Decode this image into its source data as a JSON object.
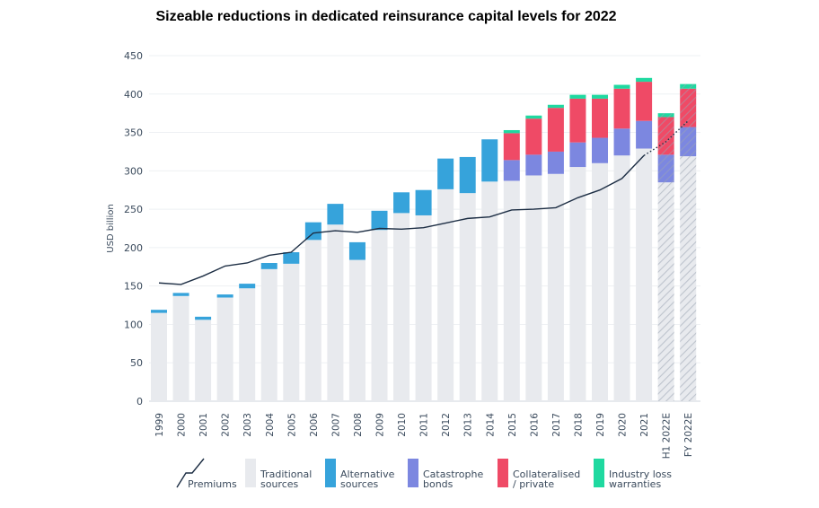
{
  "chart_data": {
    "type": "bar",
    "stacked": true,
    "title": "Sizeable reductions in dedicated reinsurance capital levels for 2022",
    "ylabel": "USD billion",
    "ylim": [
      0,
      450
    ],
    "yticks": [
      0,
      50,
      100,
      150,
      200,
      250,
      300,
      350,
      400,
      450
    ],
    "grid": true,
    "legend_position": "bottom",
    "categories": [
      "1999",
      "2000",
      "2001",
      "2002",
      "2003",
      "2004",
      "2005",
      "2006",
      "2007",
      "2008",
      "2009",
      "2010",
      "2011",
      "2012",
      "2013",
      "2014",
      "2015",
      "2016",
      "2017",
      "2018",
      "2019",
      "2020",
      "2021",
      "H1 2022E",
      "FY 2022E"
    ],
    "estimated_categories": [
      "H1 2022E",
      "FY 2022E"
    ],
    "series": [
      {
        "name": "Traditional sources",
        "color": "#e8eaee",
        "values": [
          115,
          137,
          106,
          135,
          147,
          172,
          179,
          210,
          230,
          184,
          223,
          245,
          242,
          276,
          271,
          286,
          287,
          294,
          296,
          305,
          310,
          320,
          329,
          285,
          319
        ]
      },
      {
        "name": "Alternative sources",
        "color": "#36a3db",
        "values": [
          4,
          4,
          4,
          4,
          6,
          8,
          15,
          23,
          27,
          23,
          25,
          27,
          33,
          40,
          47,
          55,
          0,
          0,
          0,
          0,
          0,
          0,
          0,
          0,
          0
        ]
      },
      {
        "name": "Catastrophe bonds",
        "color": "#7c87e0",
        "values": [
          0,
          0,
          0,
          0,
          0,
          0,
          0,
          0,
          0,
          0,
          0,
          0,
          0,
          0,
          0,
          0,
          27,
          27,
          29,
          32,
          33,
          35,
          36,
          36,
          38
        ]
      },
      {
        "name": "Collateralised / private",
        "color": "#ef4a66",
        "values": [
          0,
          0,
          0,
          0,
          0,
          0,
          0,
          0,
          0,
          0,
          0,
          0,
          0,
          0,
          0,
          0,
          35,
          47,
          57,
          57,
          51,
          52,
          51,
          49,
          50
        ]
      },
      {
        "name": "Industry loss warranties",
        "color": "#1fd9a0",
        "values": [
          0,
          0,
          0,
          0,
          0,
          0,
          0,
          0,
          0,
          0,
          0,
          0,
          0,
          0,
          0,
          0,
          4,
          4,
          4,
          5,
          5,
          5,
          5,
          5,
          6
        ]
      }
    ],
    "line_series": {
      "name": "Premiums",
      "color": "#1d2e44",
      "values": [
        154,
        152,
        163,
        176,
        180,
        190,
        194,
        219,
        222,
        220,
        225,
        224,
        226,
        232,
        238,
        240,
        249,
        250,
        252,
        265,
        275,
        290,
        320,
        338,
        365
      ],
      "estimated_from_index": 22
    }
  },
  "legend": [
    {
      "key": "premiums",
      "label_lines": [
        "Premiums"
      ]
    },
    {
      "key": "traditional",
      "label_lines": [
        "Traditional",
        "sources"
      ],
      "color": "#e8eaee"
    },
    {
      "key": "alternative",
      "label_lines": [
        "Alternative",
        "sources"
      ],
      "color": "#36a3db"
    },
    {
      "key": "catbonds",
      "label_lines": [
        "Catastrophe",
        "bonds"
      ],
      "color": "#7c87e0"
    },
    {
      "key": "collateralised",
      "label_lines": [
        "Collateralised",
        "/ private"
      ],
      "color": "#ef4a66"
    },
    {
      "key": "ilw",
      "label_lines": [
        "Industry loss",
        "warranties"
      ],
      "color": "#1fd9a0"
    }
  ]
}
